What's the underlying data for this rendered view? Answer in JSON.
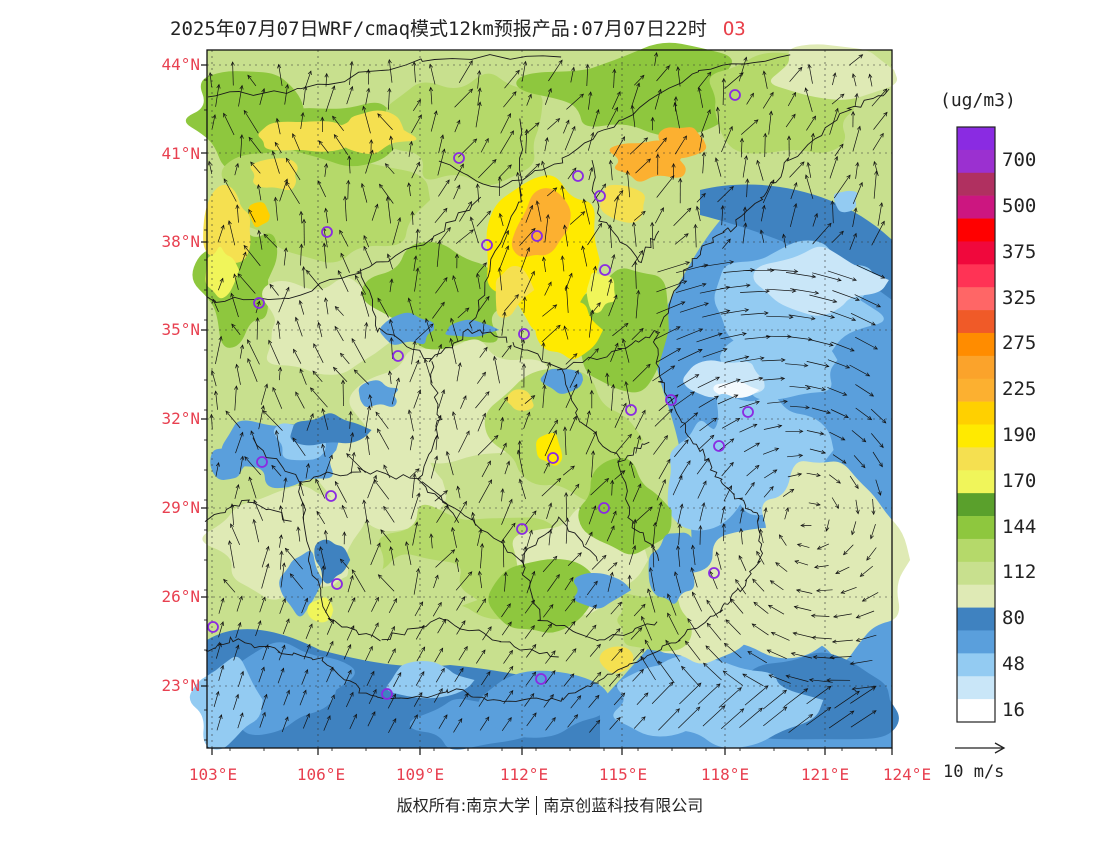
{
  "title": "2025年07月07日WRF/cmaq模式12km预报产品:07月07日22时",
  "species": "O3",
  "lat_labels": [
    "44°N",
    "41°N",
    "38°N",
    "35°N",
    "32°N",
    "29°N",
    "26°N",
    "23°N"
  ],
  "lon_labels": [
    "103°E",
    "106°E",
    "109°E",
    "112°E",
    "115°E",
    "118°E",
    "121°E",
    "124°E"
  ],
  "legend": {
    "unit": "(ug/m3)",
    "levels": [
      {
        "label": "",
        "color": "#8a2be2"
      },
      {
        "label": "700",
        "color": "#9b30d0"
      },
      {
        "label": "",
        "color": "#b03060"
      },
      {
        "label": "500",
        "color": "#cc1680"
      },
      {
        "label": "",
        "color": "#ff0000"
      },
      {
        "label": "375",
        "color": "#f0083c"
      },
      {
        "label": "",
        "color": "#ff3355"
      },
      {
        "label": "325",
        "color": "#ff6666"
      },
      {
        "label": "",
        "color": "#f05a28"
      },
      {
        "label": "275",
        "color": "#ff8c00"
      },
      {
        "label": "",
        "color": "#fba32b"
      },
      {
        "label": "225",
        "color": "#fcb030"
      },
      {
        "label": "",
        "color": "#ffd000"
      },
      {
        "label": "190",
        "color": "#ffea00"
      },
      {
        "label": "",
        "color": "#f5e050"
      },
      {
        "label": "170",
        "color": "#f0f55a"
      },
      {
        "label": "",
        "color": "#5aa02c"
      },
      {
        "label": "144",
        "color": "#8ec73e"
      },
      {
        "label": "",
        "color": "#b5d96a"
      },
      {
        "label": "112",
        "color": "#c8e08e"
      },
      {
        "label": "",
        "color": "#dfeab5"
      },
      {
        "label": "80",
        "color": "#3f82c0"
      },
      {
        "label": "",
        "color": "#5a9fdc"
      },
      {
        "label": "48",
        "color": "#93cbf2"
      },
      {
        "label": "",
        "color": "#c9e6f8"
      },
      {
        "label": "16",
        "color": "#ffffff"
      }
    ]
  },
  "vector_label": "10 m/s",
  "footer": {
    "left": "版权所有:南京大学",
    "right": "南京创蓝科技有限公司"
  }
}
